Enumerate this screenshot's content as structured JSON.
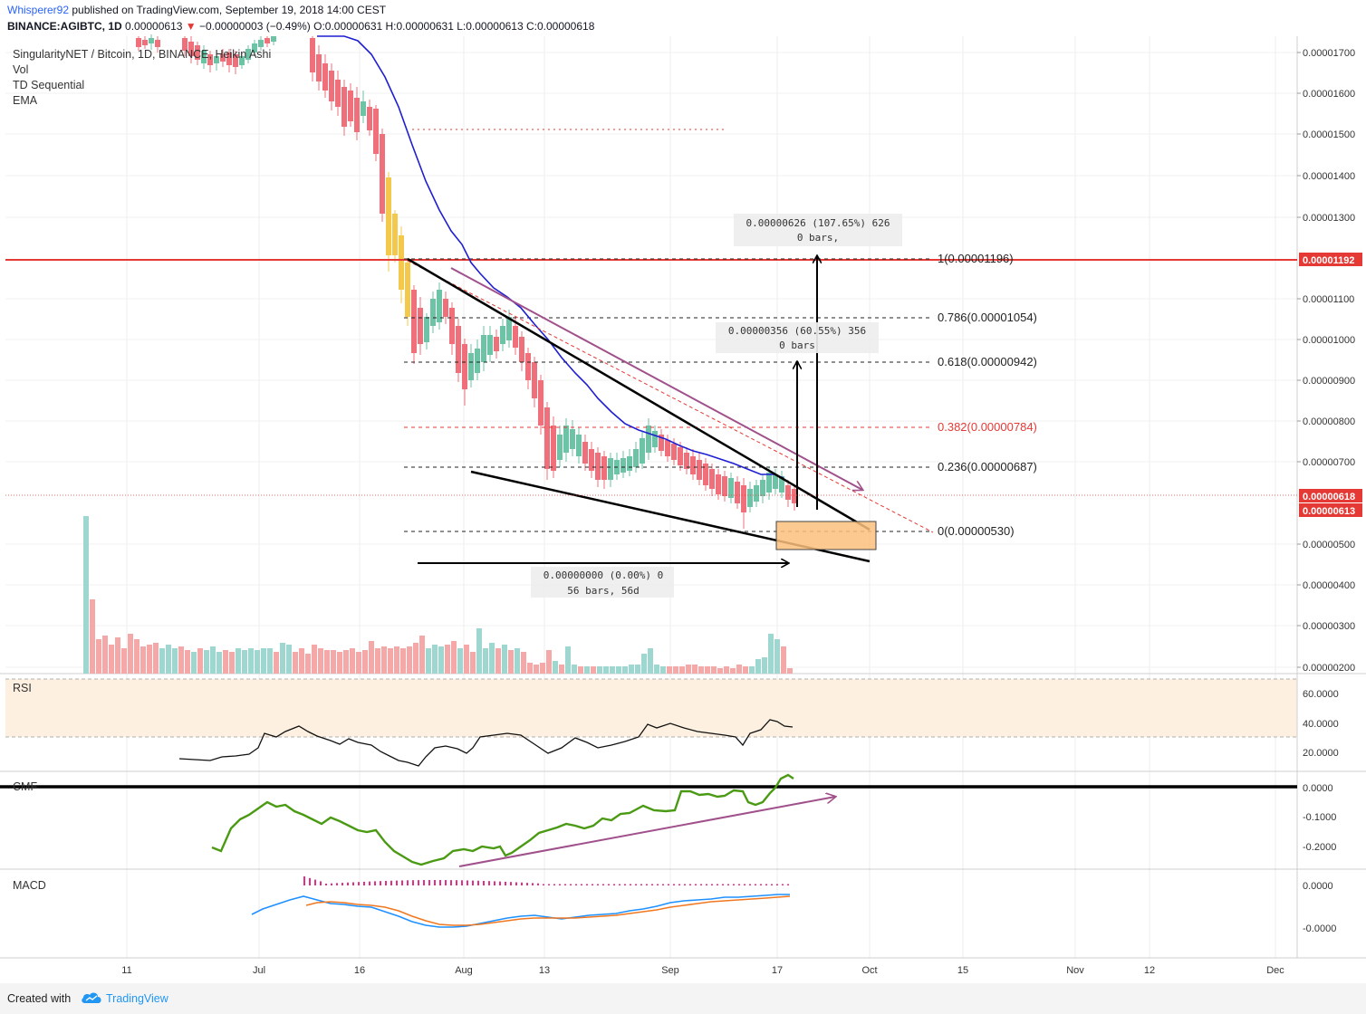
{
  "header": {
    "user": "Whisperer92",
    "published_text": "published on TradingView.com, September 19, 2018 14:00 CEST",
    "symbol": "BINANCE:AGIBTC, 1D",
    "last_price": "0.00000613",
    "change": "−0.00000003 (−0.49%)",
    "ohlc": "O:0.00000631 H:0.00000631 L:0.00000613 C:0.00000618"
  },
  "legend": {
    "title": "SingularityNET / Bitcoin, 1D, BINANCE, Heikin Ashi",
    "items": [
      "Vol",
      "TD Sequential",
      "EMA"
    ]
  },
  "panes": {
    "rsi_label": "RSI",
    "cmf_label": "CMF",
    "macd_label": "MACD"
  },
  "price_axis": {
    "ticks": [
      "0.00001700",
      "0.00001600",
      "0.00001500",
      "0.00001400",
      "0.00001300",
      "0.00001100",
      "0.00001000",
      "0.00000900",
      "0.00000800",
      "0.00000700",
      "0.00000500",
      "0.00000400",
      "0.00000300",
      "0.00000200"
    ],
    "marker_red": "0.00001192",
    "marker_last": "0.00000618",
    "marker_close": "0.00000613"
  },
  "rsi_axis": {
    "ticks": [
      "60.0000",
      "40.0000",
      "20.0000"
    ]
  },
  "cmf_axis": {
    "ticks": [
      "0.0000",
      "-0.1000",
      "-0.2000"
    ]
  },
  "macd_axis": {
    "ticks": [
      "0.0000",
      "-0.0000"
    ]
  },
  "time_axis": {
    "ticks": [
      "11",
      "Jul",
      "16",
      "Aug",
      "13",
      "Sep",
      "17",
      "Oct",
      "15",
      "Nov",
      "12",
      "Dec"
    ]
  },
  "fib_levels": [
    {
      "label": "1(0.00001196)",
      "color": "#222222"
    },
    {
      "label": "0.786(0.00001054)",
      "color": "#222222"
    },
    {
      "label": "0.618(0.00000942)",
      "color": "#222222"
    },
    {
      "label": "0.382(0.00000784)",
      "color": "#e53935"
    },
    {
      "label": "0.236(0.00000687)",
      "color": "#222222"
    },
    {
      "label": "0(0.00000530)",
      "color": "#222222"
    }
  ],
  "measure_labels": {
    "top_line1": "0.00000626 (107.65%) 626",
    "top_line2": "0 bars,",
    "mid_line1": "0.00000356 (60.55%) 356",
    "mid_line2": "0 bars",
    "bottom_line1": "0.00000000 (0.00%) 0",
    "bottom_line2": "56 bars, 56d"
  },
  "footer": {
    "created_with": "Created with",
    "brand": "TradingView"
  },
  "colors": {
    "up": "#6dc3a5",
    "down": "#ef6f7a",
    "ema": "#1e1ed2",
    "resistance": "#e53935",
    "cmf": "#4a9a14",
    "divergence": "#a0508a",
    "macd_line": "#1e90ff",
    "signal_line": "#f07820",
    "highlight_box": "#fbc17d"
  },
  "chart_data": {
    "type": "candlestick",
    "title": "SingularityNET / Bitcoin, 1D, BINANCE, Heikin Ashi",
    "ylim": [
      1.9e-06,
      1.75e-05
    ],
    "x_range": [
      "2018-06-02",
      "2018-12-05"
    ],
    "ema_approx": [
      [
        "2018-07-01",
        1.72e-05
      ],
      [
        "2018-07-10",
        1.67e-05
      ],
      [
        "2018-07-16",
        1.56e-05
      ],
      [
        "2018-07-22",
        1.37e-05
      ],
      [
        "2018-07-27",
        1.21e-05
      ],
      [
        "2018-08-05",
        1.05e-05
      ],
      [
        "2018-08-13",
        9.4e-06
      ],
      [
        "2018-08-18",
        8.5e-06
      ],
      [
        "2018-08-25",
        7.8e-06
      ],
      [
        "2018-09-01",
        7.3e-06
      ],
      [
        "2018-09-08",
        7.1e-06
      ],
      [
        "2018-09-17",
        6.7e-06
      ]
    ],
    "fib_prices": [
      1.196e-05,
      1.054e-05,
      9.42e-06,
      7.84e-06,
      6.87e-06,
      5.3e-06
    ],
    "horizontal_resistance": 1.192e-05,
    "rsi": {
      "ylim": [
        10,
        70
      ],
      "approx_range": [
        14,
        42
      ]
    },
    "cmf": {
      "ylim": [
        -0.27,
        0.04
      ],
      "approx_range": [
        -0.26,
        0.03
      ]
    }
  }
}
